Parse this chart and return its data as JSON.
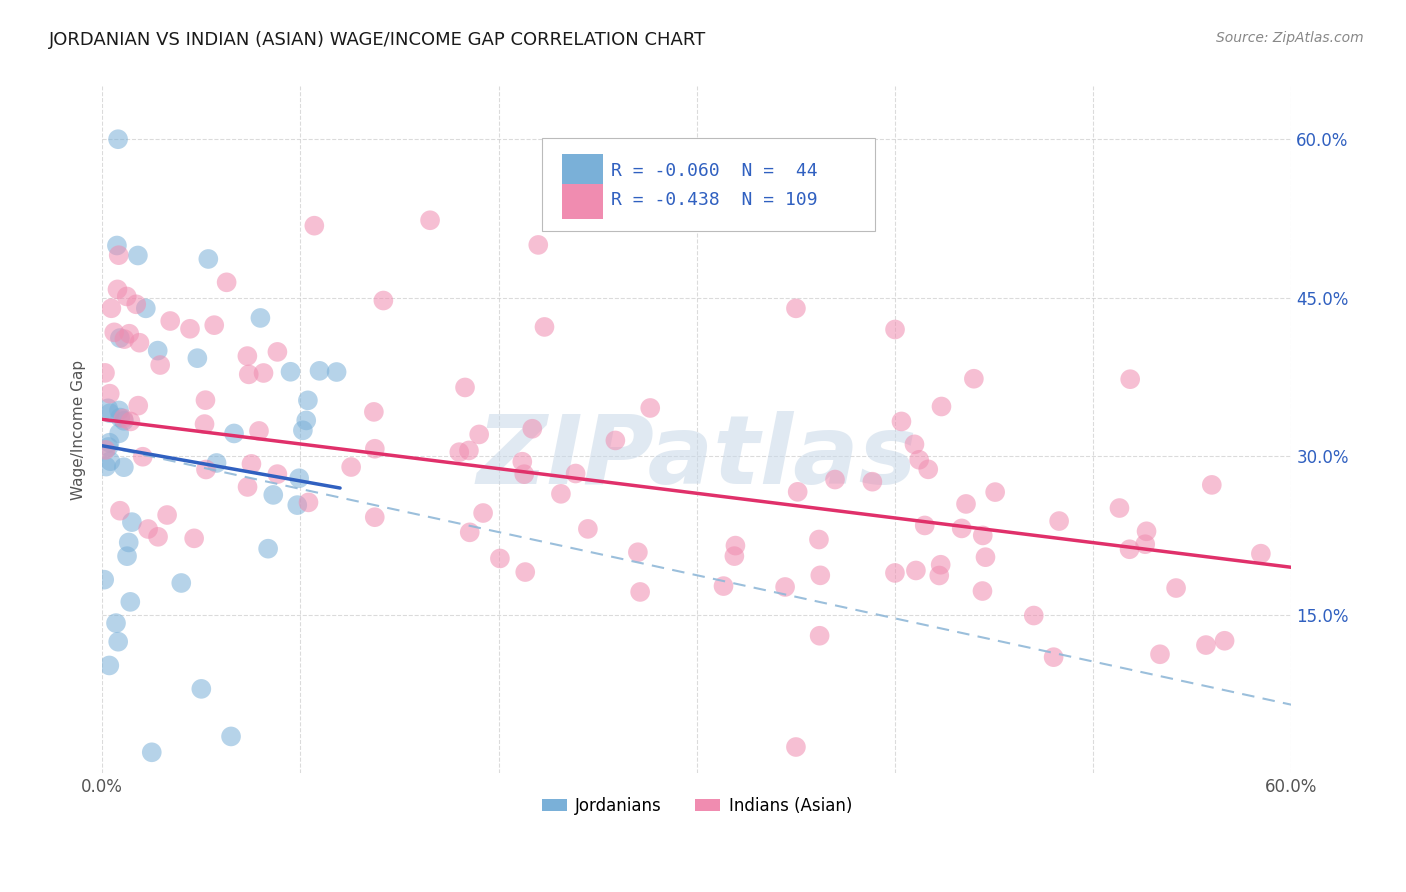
{
  "title": "JORDANIAN VS INDIAN (ASIAN) WAGE/INCOME GAP CORRELATION CHART",
  "source": "Source: ZipAtlas.com",
  "ylabel": "Wage/Income Gap",
  "xlabel": "",
  "xlim": [
    0.0,
    0.6
  ],
  "ylim": [
    0.0,
    0.65
  ],
  "ytick_positions": [
    0.15,
    0.3,
    0.45,
    0.6
  ],
  "ytick_labels": [
    "15.0%",
    "30.0%",
    "45.0%",
    "60.0%"
  ],
  "xtick_positions": [
    0.0,
    0.1,
    0.2,
    0.3,
    0.4,
    0.5,
    0.6
  ],
  "xtick_labels": [
    "0.0%",
    "",
    "",
    "",
    "",
    "",
    "60.0%"
  ],
  "jordanian_color": "#7ab0d8",
  "indian_color": "#f08cb0",
  "trend_jordan_color": "#3060c0",
  "trend_india_color": "#e0306a",
  "trend_dashed_color": "#90b8d8",
  "background_color": "#ffffff",
  "grid_color": "#cccccc",
  "legend_jordan_R": "-0.060",
  "legend_jordan_N": "44",
  "legend_india_R": "-0.438",
  "legend_india_N": "109",
  "watermark": "ZIPatlas",
  "watermark_color": "#c8d8e8",
  "title_fontsize": 13,
  "axis_label_color": "#3060c0",
  "right_tick_color": "#3060c0",
  "legend_jordan_label": "R = -0.060  N =  44",
  "legend_india_label": "R = -0.438  N = 109",
  "bottom_legend_jordan": "Jordanians",
  "bottom_legend_indian": "Indians (Asian)",
  "trend_jordan_start_y": 0.31,
  "trend_jordan_end_y": 0.27,
  "trend_jordan_end_x": 0.12,
  "trend_dashed_start_y": 0.31,
  "trend_dashed_end_y": 0.065,
  "trend_india_start_y": 0.335,
  "trend_india_end_y": 0.195
}
